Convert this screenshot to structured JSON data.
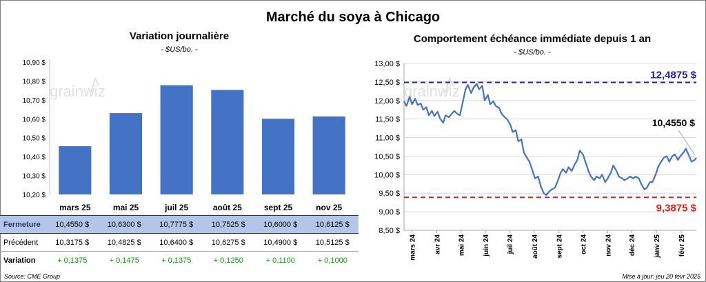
{
  "title": "Marché du soya à Chicago",
  "left_panel": {
    "title": "Variation journalière",
    "unit": "- $US/bo. -"
  },
  "right_panel": {
    "title": "Comportement échéance immédiate depuis 1 an",
    "unit": "- $US/bo. -"
  },
  "watermark": "grainwiz",
  "table": {
    "columns": [
      "mars 25",
      "mai 25",
      "juil 25",
      "août 25",
      "sept 25",
      "nov 25"
    ],
    "rows": [
      {
        "label": "Fermeture",
        "values": [
          "10,4550 $",
          "10,6300 $",
          "10,7775 $",
          "10,7525 $",
          "10,6000 $",
          "10,6125 $"
        ]
      },
      {
        "label": "Précédent",
        "values": [
          "10,3175 $",
          "10,4825 $",
          "10,6400 $",
          "10,6275 $",
          "10,4900 $",
          "10,5125 $"
        ]
      },
      {
        "label": "Variation",
        "values": [
          "+ 0,1375",
          "+ 0,1475",
          "+ 0,1375",
          "+ 0,1250",
          "+ 0,1100",
          "+ 0,1000"
        ]
      }
    ]
  },
  "chart_data": [
    {
      "type": "bar",
      "title": "Variation journalière",
      "categories": [
        "mars 25",
        "mai 25",
        "juil 25",
        "août 25",
        "sept 25",
        "nov 25"
      ],
      "values": [
        10.455,
        10.63,
        10.7775,
        10.7525,
        10.6,
        10.6125
      ],
      "ylim": [
        10.2,
        10.9
      ],
      "yticks": [
        10.2,
        10.3,
        10.4,
        10.5,
        10.6,
        10.7,
        10.8,
        10.9
      ],
      "ytick_labels": [
        "10,20 $",
        "10,30 $",
        "10,40 $",
        "10,50 $",
        "10,60 $",
        "10,70 $",
        "10,80 $",
        "10,90 $"
      ],
      "color": "#4472c4",
      "grid": false
    },
    {
      "type": "line",
      "title": "Comportement échéance immédiate depuis 1 an",
      "x_range": [
        "2024-02-20",
        "2025-02-20"
      ],
      "ylim": [
        8.5,
        13.0
      ],
      "yticks": [
        8.5,
        9.0,
        9.5,
        10.0,
        10.5,
        11.0,
        11.5,
        12.0,
        12.5,
        13.0
      ],
      "ytick_labels": [
        "8,50 $",
        "9,00 $",
        "9,50 $",
        "10,00 $",
        "10,50 $",
        "11,00 $",
        "11,50 $",
        "12,00 $",
        "12,50 $",
        "13,00 $"
      ],
      "xticks": [
        "2024-03-01",
        "2024-04-01",
        "2024-05-01",
        "2024-06-01",
        "2024-07-01",
        "2024-08-01",
        "2024-09-01",
        "2024-10-01",
        "2024-11-01",
        "2024-12-01",
        "2025-01-01",
        "2025-02-01"
      ],
      "xtick_labels": [
        "mars 24",
        "avr 24",
        "mai 24",
        "juin 24",
        "juil 24",
        "août 24",
        "sept 24",
        "oct 24",
        "nov 24",
        "déc 24",
        "janv 25",
        "févr 25"
      ],
      "line_color": "#4472c4",
      "grid": "horizontal",
      "points": [
        [
          "2024-02-20",
          11.98
        ],
        [
          "2024-02-23",
          11.85
        ],
        [
          "2024-02-27",
          12.1
        ],
        [
          "2024-03-01",
          11.9
        ],
        [
          "2024-03-05",
          12.05
        ],
        [
          "2024-03-08",
          11.88
        ],
        [
          "2024-03-12",
          11.92
        ],
        [
          "2024-03-15",
          11.75
        ],
        [
          "2024-03-19",
          11.82
        ],
        [
          "2024-03-22",
          11.6
        ],
        [
          "2024-03-26",
          11.72
        ],
        [
          "2024-03-29",
          11.58
        ],
        [
          "2024-04-02",
          11.7
        ],
        [
          "2024-04-05",
          11.52
        ],
        [
          "2024-04-09",
          11.4
        ],
        [
          "2024-04-12",
          11.6
        ],
        [
          "2024-04-16",
          11.55
        ],
        [
          "2024-04-19",
          11.62
        ],
        [
          "2024-04-23",
          11.72
        ],
        [
          "2024-04-26",
          11.65
        ],
        [
          "2024-04-30",
          11.6
        ],
        [
          "2024-05-03",
          11.9
        ],
        [
          "2024-05-07",
          12.3
        ],
        [
          "2024-05-10",
          12.42
        ],
        [
          "2024-05-14",
          12.2
        ],
        [
          "2024-05-17",
          12.35
        ],
        [
          "2024-05-21",
          12.45
        ],
        [
          "2024-05-24",
          12.3
        ],
        [
          "2024-05-28",
          12.4
        ],
        [
          "2024-05-31",
          12.0
        ],
        [
          "2024-06-04",
          12.15
        ],
        [
          "2024-06-07",
          11.9
        ],
        [
          "2024-06-11",
          11.98
        ],
        [
          "2024-06-14",
          11.85
        ],
        [
          "2024-06-18",
          11.8
        ],
        [
          "2024-06-21",
          11.65
        ],
        [
          "2024-06-25",
          11.55
        ],
        [
          "2024-06-28",
          11.5
        ],
        [
          "2024-07-02",
          11.35
        ],
        [
          "2024-07-05",
          11.15
        ],
        [
          "2024-07-09",
          11.2
        ],
        [
          "2024-07-12",
          10.9
        ],
        [
          "2024-07-16",
          10.95
        ],
        [
          "2024-07-19",
          10.6
        ],
        [
          "2024-07-23",
          10.45
        ],
        [
          "2024-07-26",
          10.35
        ],
        [
          "2024-07-30",
          10.1
        ],
        [
          "2024-08-02",
          9.9
        ],
        [
          "2024-08-06",
          9.95
        ],
        [
          "2024-08-09",
          9.7
        ],
        [
          "2024-08-13",
          9.5
        ],
        [
          "2024-08-16",
          9.45
        ],
        [
          "2024-08-20",
          9.55
        ],
        [
          "2024-08-23",
          9.6
        ],
        [
          "2024-08-27",
          9.65
        ],
        [
          "2024-08-30",
          9.8
        ],
        [
          "2024-09-03",
          10.05
        ],
        [
          "2024-09-06",
          10.15
        ],
        [
          "2024-09-10",
          10.05
        ],
        [
          "2024-09-13",
          10.2
        ],
        [
          "2024-09-17",
          10.1
        ],
        [
          "2024-09-20",
          10.25
        ],
        [
          "2024-09-24",
          10.4
        ],
        [
          "2024-09-27",
          10.65
        ],
        [
          "2024-10-01",
          10.55
        ],
        [
          "2024-10-04",
          10.35
        ],
        [
          "2024-10-08",
          10.1
        ],
        [
          "2024-10-11",
          9.95
        ],
        [
          "2024-10-15",
          9.85
        ],
        [
          "2024-10-18",
          9.95
        ],
        [
          "2024-10-22",
          9.9
        ],
        [
          "2024-10-25",
          10.0
        ],
        [
          "2024-10-29",
          9.8
        ],
        [
          "2024-11-01",
          9.9
        ],
        [
          "2024-11-05",
          10.05
        ],
        [
          "2024-11-08",
          10.25
        ],
        [
          "2024-11-12",
          10.1
        ],
        [
          "2024-11-15",
          9.95
        ],
        [
          "2024-11-19",
          9.9
        ],
        [
          "2024-11-22",
          9.85
        ],
        [
          "2024-11-26",
          9.9
        ],
        [
          "2024-11-29",
          9.95
        ],
        [
          "2024-12-03",
          9.9
        ],
        [
          "2024-12-06",
          9.95
        ],
        [
          "2024-12-10",
          9.9
        ],
        [
          "2024-12-13",
          9.75
        ],
        [
          "2024-12-17",
          9.6
        ],
        [
          "2024-12-20",
          9.65
        ],
        [
          "2024-12-24",
          9.8
        ],
        [
          "2024-12-27",
          9.8
        ],
        [
          "2024-12-31",
          10.0
        ],
        [
          "2025-01-03",
          10.2
        ],
        [
          "2025-01-07",
          10.35
        ],
        [
          "2025-01-10",
          10.45
        ],
        [
          "2025-01-14",
          10.5
        ],
        [
          "2025-01-17",
          10.35
        ],
        [
          "2025-01-21",
          10.5
        ],
        [
          "2025-01-24",
          10.55
        ],
        [
          "2025-01-28",
          10.4
        ],
        [
          "2025-01-31",
          10.5
        ],
        [
          "2025-02-04",
          10.6
        ],
        [
          "2025-02-07",
          10.7
        ],
        [
          "2025-02-11",
          10.5
        ],
        [
          "2025-02-14",
          10.35
        ],
        [
          "2025-02-18",
          10.4
        ],
        [
          "2025-02-20",
          10.455
        ]
      ],
      "reference_lines": [
        {
          "value": 12.4875,
          "label": "12,4875 $",
          "color": "#1f1fa6",
          "style": "dashed"
        },
        {
          "value": 9.3875,
          "label": "9,3875 $",
          "color": "#e02020",
          "style": "dashed"
        }
      ],
      "last_value": {
        "value": 10.455,
        "label": "10,4550 $"
      }
    }
  ],
  "footer": {
    "source": "Source: CME Group",
    "update": "Mise à jour: jeu 20 févr 2025"
  }
}
